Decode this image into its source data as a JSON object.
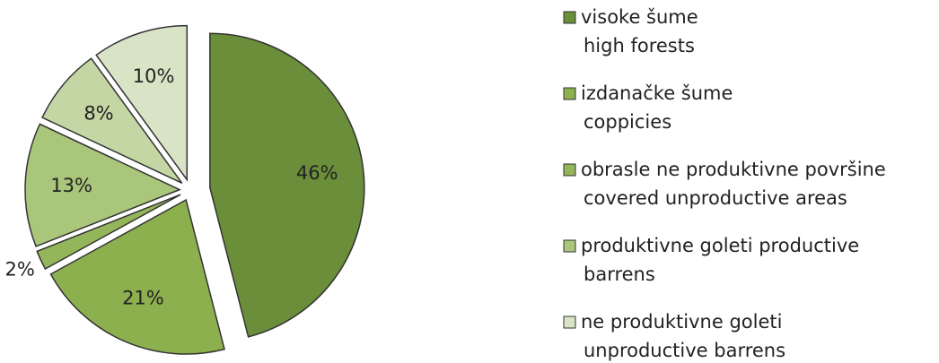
{
  "chart_data": {
    "type": "pie",
    "categories": [
      [
        "visoke šume",
        "high forests"
      ],
      [
        "izdanačke šume",
        "coppicies"
      ],
      [
        "obrasle ne produktivne površine",
        "covered unproductive areas"
      ],
      [
        "produktivne goleti productive",
        "barrens"
      ],
      null,
      [
        "ne produktivne goleti",
        "unproductive barrens"
      ]
    ],
    "values": [
      46,
      21,
      2,
      13,
      8,
      10
    ],
    "value_labels": [
      "46%",
      "21%",
      "2%",
      "13%",
      "8%",
      "10%"
    ],
    "colors": [
      "#6b8e3a",
      "#8db04f",
      "#94b65a",
      "#a9c67b",
      "#c3d6a3",
      "#d8e4c5"
    ],
    "legend": "right"
  }
}
